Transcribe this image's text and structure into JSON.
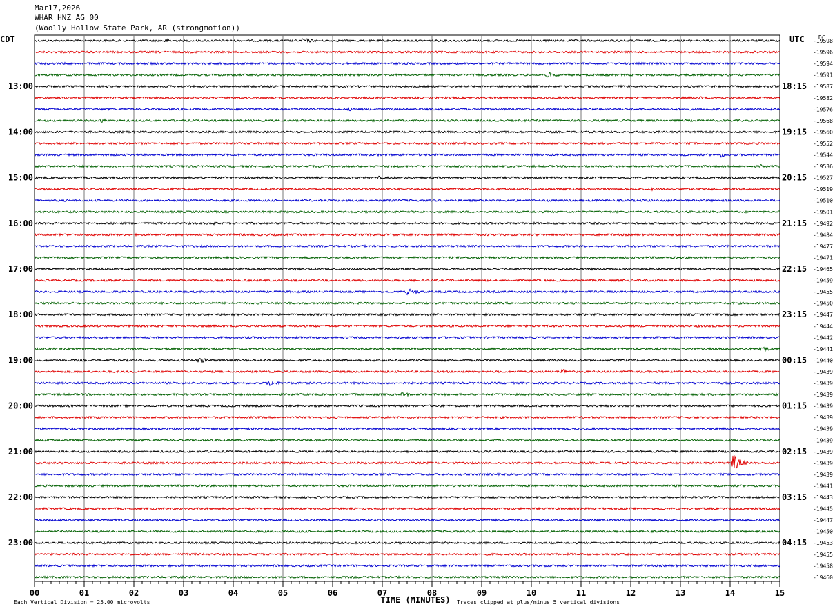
{
  "header": {
    "date": "Mar17,2026",
    "station": "WHAR HNZ AG 00",
    "location": "(Woolly Hollow State Park, AR (strongmotion))"
  },
  "footer": {
    "scale_note": "Each Vertical Division =   25.00 microvolts",
    "clip_note": "Traces clipped at plus/minus 5 vertical divisions"
  },
  "chart_data": {
    "type": "line",
    "title": "",
    "xlabel": "TIME (MINUTES)",
    "x_ticks": [
      "00",
      "01",
      "02",
      "03",
      "04",
      "05",
      "06",
      "07",
      "08",
      "09",
      "10",
      "11",
      "12",
      "13",
      "14",
      "15"
    ],
    "xlim": [
      0,
      15
    ],
    "grid": true,
    "left_tz": "CDT",
    "right_tz": "UTC",
    "dc_label": "DC",
    "left_time_labels": [
      "13:00",
      "14:00",
      "15:00",
      "16:00",
      "17:00",
      "18:00",
      "19:00",
      "20:00",
      "21:00",
      "22:00",
      "23:00"
    ],
    "right_time_labels": [
      "18:15",
      "19:15",
      "20:15",
      "21:15",
      "22:15",
      "23:15",
      "00:15",
      "01:15",
      "02:15",
      "03:15",
      "04:15"
    ],
    "trace_colors": [
      "#000000",
      "#e00000",
      "#0000d0",
      "#006000"
    ],
    "dc_offsets": [
      "-19598",
      "-19596",
      "-19594",
      "-19591",
      "-19587",
      "-19582",
      "-19576",
      "-19568",
      "-19560",
      "-19552",
      "-19544",
      "-19536",
      "-19527",
      "-19519",
      "-19510",
      "-19501",
      "-19492",
      "-19484",
      "-19477",
      "-19471",
      "-19465",
      "-19459",
      "-19455",
      "-19450",
      "-19447",
      "-19444",
      "-19442",
      "-19441",
      "-19440",
      "-19439",
      "-19439",
      "-19439",
      "-19439",
      "-19439",
      "-19439",
      "-19439",
      "-19439",
      "-19439",
      "-19439",
      "-19441",
      "-19443",
      "-19445",
      "-19447",
      "-19450",
      "-19453",
      "-19455",
      "-19458",
      "-19460"
    ],
    "events": [
      {
        "trace": 0,
        "minute": 2.6,
        "amplitude": 4,
        "duration": 0.5
      },
      {
        "trace": 0,
        "minute": 5.4,
        "amplitude": 5,
        "duration": 0.4
      },
      {
        "trace": 3,
        "minute": 10.3,
        "amplitude": 4,
        "duration": 0.7
      },
      {
        "trace": 4,
        "minute": 9.5,
        "amplitude": 3,
        "duration": 0.4
      },
      {
        "trace": 5,
        "minute": 13.4,
        "amplitude": 3,
        "duration": 0.2
      },
      {
        "trace": 6,
        "minute": 6.3,
        "amplitude": 3,
        "duration": 0.5
      },
      {
        "trace": 7,
        "minute": 1.3,
        "amplitude": 4,
        "duration": 0.4
      },
      {
        "trace": 10,
        "minute": 13.8,
        "amplitude": 4,
        "duration": 0.3
      },
      {
        "trace": 11,
        "minute": 14.6,
        "amplitude": 3,
        "duration": 0.3
      },
      {
        "trace": 12,
        "minute": 6.9,
        "amplitude": 3,
        "duration": 0.3
      },
      {
        "trace": 13,
        "minute": 12.4,
        "amplitude": 4,
        "duration": 0.1
      },
      {
        "trace": 16,
        "minute": 3.6,
        "amplitude": 3,
        "duration": 0.2
      },
      {
        "trace": 20,
        "minute": 7.0,
        "amplitude": 4,
        "duration": 0.3
      },
      {
        "trace": 22,
        "minute": 7.5,
        "amplitude": 6,
        "duration": 0.5
      },
      {
        "trace": 27,
        "minute": 14.6,
        "amplitude": 5,
        "duration": 0.5
      },
      {
        "trace": 28,
        "minute": 3.3,
        "amplitude": 5,
        "duration": 0.4
      },
      {
        "trace": 29,
        "minute": 10.6,
        "amplitude": 5,
        "duration": 0.4
      },
      {
        "trace": 30,
        "minute": 4.7,
        "amplitude": 6,
        "duration": 0.4
      },
      {
        "trace": 31,
        "minute": 7.4,
        "amplitude": 4,
        "duration": 0.4
      },
      {
        "trace": 37,
        "minute": 14.05,
        "amplitude": 14,
        "duration": 0.35
      }
    ]
  }
}
